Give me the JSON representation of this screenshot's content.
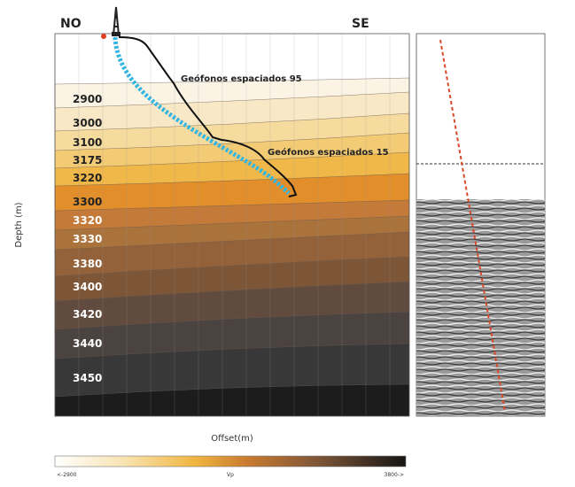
{
  "panel": {
    "left_label": "NO",
    "right_label": "SE",
    "y_axis_label": "Depth (m)",
    "x_axis_label": "Offset(m)",
    "layers": [
      "2900",
      "3000",
      "3100",
      "3175",
      "3220",
      "3300",
      "3320",
      "3330",
      "3380",
      "3400",
      "3420",
      "3440",
      "3450"
    ],
    "annotations": [
      "Geófonos espaciados 95",
      "Geófonos espaciados 15"
    ]
  },
  "colorbar": {
    "min_label": "<-2900",
    "title": "Vp",
    "max_label": "3800->"
  }
}
